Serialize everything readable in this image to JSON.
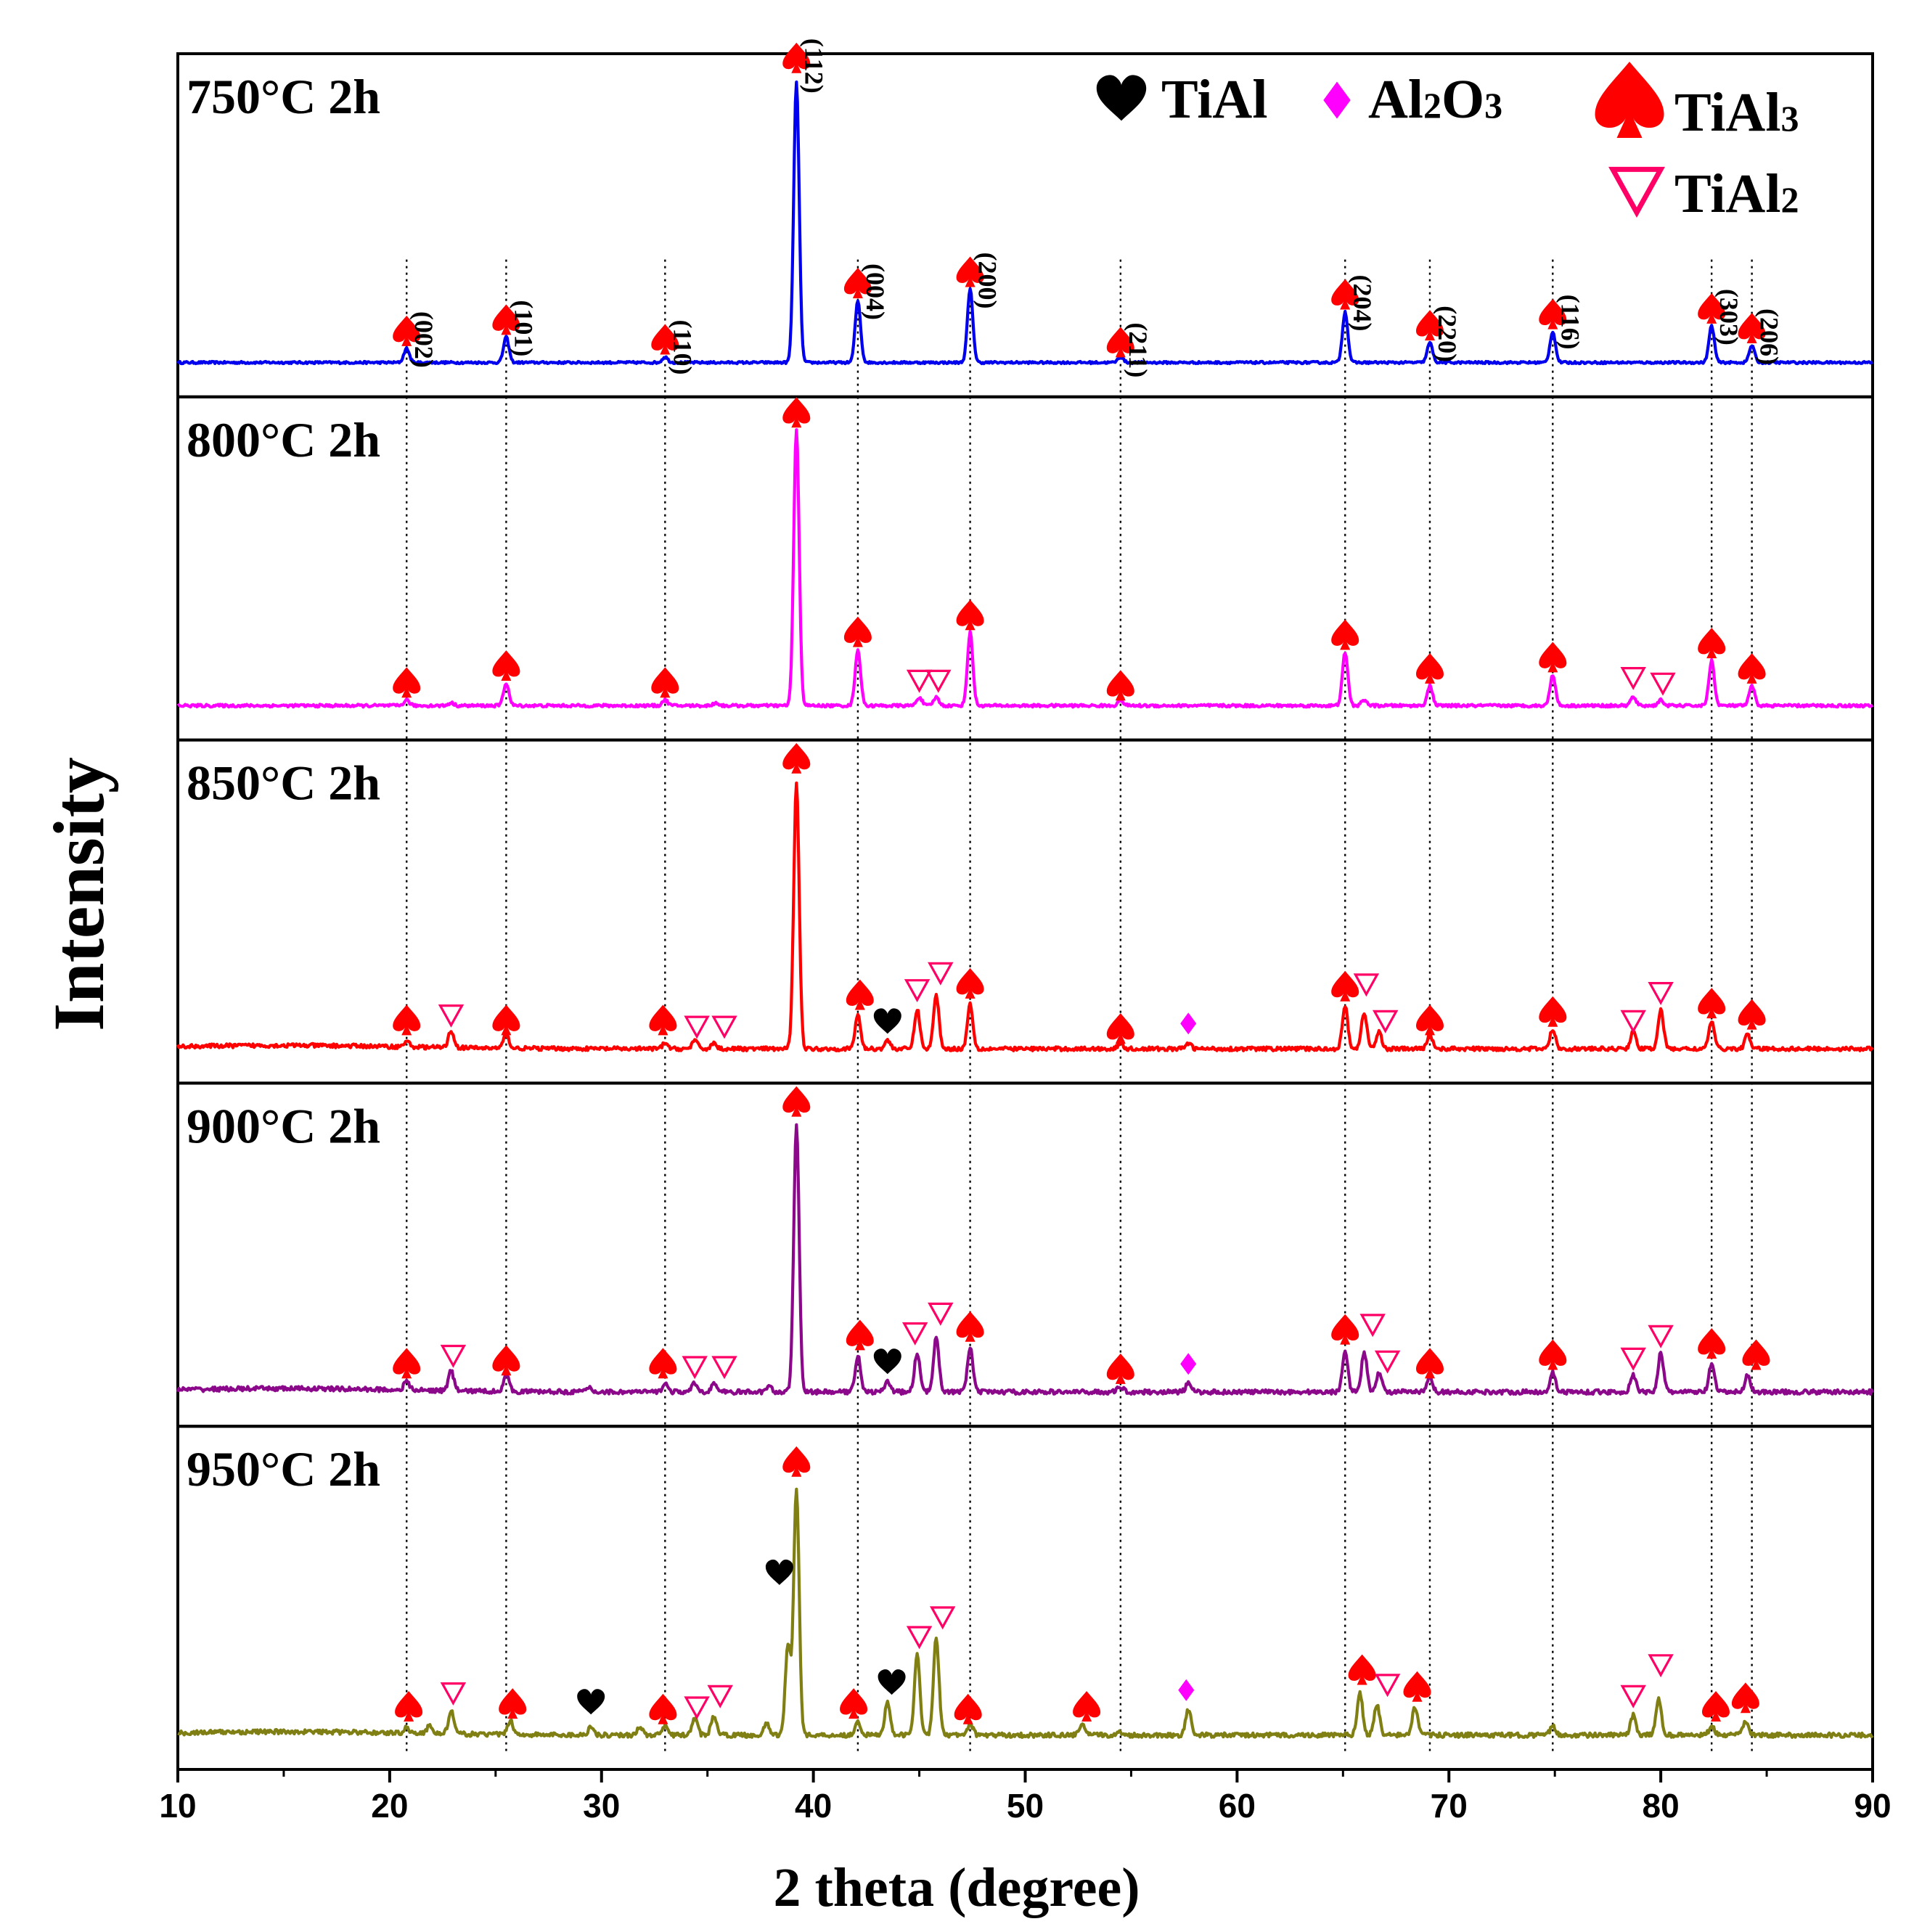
{
  "chart_data": {
    "type": "line",
    "title": "",
    "xlabel": "2 theta (degree)",
    "ylabel": "Intensity",
    "xlim": [
      10,
      90
    ],
    "xticks": [
      10,
      20,
      30,
      40,
      50,
      60,
      70,
      80,
      90
    ],
    "xtick_labels": [
      "10",
      "20",
      "30",
      "40",
      "50",
      "60",
      "70",
      "80",
      "90"
    ],
    "grid": false,
    "legend": {
      "position": "top-right",
      "entries": [
        {
          "marker": "heart",
          "color": "#000000",
          "name": "TiAl",
          "base": "TiAl",
          "sub": ""
        },
        {
          "marker": "diamond",
          "color": "#ff00ff",
          "name": "Al2O3",
          "base": "Al",
          "sub": "2",
          "base2": "O",
          "sub2": "3"
        },
        {
          "marker": "spade",
          "color": "#ff0000",
          "name": "TiAl3",
          "base": "TiAl",
          "sub": "3"
        },
        {
          "marker": "triangle-down-open",
          "color": "#ff0066",
          "name": "TiAl2",
          "base": "TiAl",
          "sub": "2"
        }
      ]
    },
    "reference_lines": [
      20.8,
      25.5,
      33.0,
      42.1,
      47.4,
      54.5,
      65.1,
      69.1,
      74.9,
      82.4,
      84.3
    ],
    "hkl_labels": [
      {
        "x": 20.8,
        "label": "(002)"
      },
      {
        "x": 25.5,
        "label": "(101)"
      },
      {
        "x": 33.0,
        "label": "(110)"
      },
      {
        "x": 39.2,
        "label": "(112)"
      },
      {
        "x": 42.1,
        "label": "(004)"
      },
      {
        "x": 47.4,
        "label": "(200)"
      },
      {
        "x": 54.5,
        "label": "(211)"
      },
      {
        "x": 65.1,
        "label": "(204)"
      },
      {
        "x": 69.1,
        "label": "(220)"
      },
      {
        "x": 74.9,
        "label": "(116)"
      },
      {
        "x": 82.4,
        "label": "(303)"
      },
      {
        "x": 84.3,
        "label": "(206)"
      }
    ],
    "series": [
      {
        "name": "750°C 2h",
        "color": "#0000ee",
        "noise": 0.004,
        "peaks": [
          [
            20.8,
            0.05
          ],
          [
            25.5,
            0.09
          ],
          [
            33.0,
            0.02
          ],
          [
            39.2,
            1.0
          ],
          [
            42.1,
            0.22
          ],
          [
            47.4,
            0.26
          ],
          [
            54.5,
            0.02
          ],
          [
            65.1,
            0.18
          ],
          [
            69.1,
            0.07
          ],
          [
            74.9,
            0.11
          ],
          [
            82.4,
            0.13
          ],
          [
            84.3,
            0.06
          ]
        ],
        "markers": [
          {
            "type": "spade",
            "x": 20.8,
            "y": 0.11
          },
          {
            "type": "spade",
            "x": 25.5,
            "y": 0.15
          },
          {
            "type": "spade",
            "x": 33.0,
            "y": 0.08
          },
          {
            "type": "spade",
            "x": 39.2,
            "y": 1.08
          },
          {
            "type": "spade",
            "x": 42.1,
            "y": 0.28
          },
          {
            "type": "spade",
            "x": 47.4,
            "y": 0.32
          },
          {
            "type": "spade",
            "x": 54.5,
            "y": 0.07
          },
          {
            "type": "spade",
            "x": 65.1,
            "y": 0.24
          },
          {
            "type": "spade",
            "x": 69.1,
            "y": 0.13
          },
          {
            "type": "spade",
            "x": 74.9,
            "y": 0.17
          },
          {
            "type": "spade",
            "x": 82.4,
            "y": 0.19
          },
          {
            "type": "spade",
            "x": 84.3,
            "y": 0.12
          }
        ]
      },
      {
        "name": "800°C 2h",
        "color": "#ff00ff",
        "noise": 0.005,
        "peaks": [
          [
            20.8,
            0.02
          ],
          [
            22.9,
            0.01
          ],
          [
            25.5,
            0.08
          ],
          [
            33.0,
            0.02
          ],
          [
            35.4,
            0.01
          ],
          [
            39.2,
            0.98
          ],
          [
            42.1,
            0.2
          ],
          [
            45.0,
            0.03
          ],
          [
            45.8,
            0.03
          ],
          [
            47.4,
            0.26
          ],
          [
            54.5,
            0.02
          ],
          [
            65.1,
            0.19
          ],
          [
            66.0,
            0.02
          ],
          [
            69.1,
            0.07
          ],
          [
            74.9,
            0.11
          ],
          [
            78.7,
            0.03
          ],
          [
            80.0,
            0.02
          ],
          [
            82.4,
            0.16
          ],
          [
            84.3,
            0.07
          ]
        ],
        "markers": [
          {
            "type": "spade",
            "x": 20.8,
            "y": 0.08
          },
          {
            "type": "spade",
            "x": 25.5,
            "y": 0.14
          },
          {
            "type": "spade",
            "x": 33.0,
            "y": 0.08
          },
          {
            "type": "spade",
            "x": 39.2,
            "y": 1.04
          },
          {
            "type": "spade",
            "x": 42.1,
            "y": 0.26
          },
          {
            "type": "tri",
            "x": 45.0,
            "y": 0.09
          },
          {
            "type": "tri",
            "x": 45.9,
            "y": 0.09
          },
          {
            "type": "spade",
            "x": 47.4,
            "y": 0.32
          },
          {
            "type": "spade",
            "x": 54.5,
            "y": 0.07
          },
          {
            "type": "spade",
            "x": 65.1,
            "y": 0.25
          },
          {
            "type": "spade",
            "x": 69.1,
            "y": 0.13
          },
          {
            "type": "spade",
            "x": 74.9,
            "y": 0.17
          },
          {
            "type": "tri",
            "x": 78.7,
            "y": 0.1
          },
          {
            "type": "tri",
            "x": 80.1,
            "y": 0.08
          },
          {
            "type": "spade",
            "x": 82.4,
            "y": 0.22
          },
          {
            "type": "spade",
            "x": 84.3,
            "y": 0.13
          }
        ]
      },
      {
        "name": "850°C 2h",
        "color": "#ff0000",
        "noise": 0.007,
        "peaks": [
          [
            20.8,
            0.02
          ],
          [
            22.9,
            0.06
          ],
          [
            25.5,
            0.05
          ],
          [
            33.0,
            0.02
          ],
          [
            34.4,
            0.03
          ],
          [
            35.3,
            0.02
          ],
          [
            39.2,
            0.95
          ],
          [
            42.1,
            0.12
          ],
          [
            43.5,
            0.03
          ],
          [
            44.9,
            0.14
          ],
          [
            45.8,
            0.19
          ],
          [
            47.4,
            0.16
          ],
          [
            54.5,
            0.02
          ],
          [
            57.7,
            0.02
          ],
          [
            65.1,
            0.15
          ],
          [
            66.0,
            0.13
          ],
          [
            66.7,
            0.06
          ],
          [
            69.1,
            0.05
          ],
          [
            74.9,
            0.07
          ],
          [
            78.7,
            0.06
          ],
          [
            80.0,
            0.14
          ],
          [
            82.4,
            0.1
          ],
          [
            84.1,
            0.05
          ]
        ],
        "markers": [
          {
            "type": "spade",
            "x": 20.8,
            "y": 0.1
          },
          {
            "type": "tri",
            "x": 22.9,
            "y": 0.12
          },
          {
            "type": "spade",
            "x": 25.5,
            "y": 0.1
          },
          {
            "type": "spade",
            "x": 32.9,
            "y": 0.1
          },
          {
            "type": "tri",
            "x": 34.5,
            "y": 0.08
          },
          {
            "type": "tri",
            "x": 35.8,
            "y": 0.08
          },
          {
            "type": "spade",
            "x": 39.2,
            "y": 1.03
          },
          {
            "type": "spade",
            "x": 42.2,
            "y": 0.19
          },
          {
            "type": "heart",
            "x": 43.5,
            "y": 0.1
          },
          {
            "type": "tri",
            "x": 44.9,
            "y": 0.21
          },
          {
            "type": "tri",
            "x": 46.0,
            "y": 0.27
          },
          {
            "type": "spade",
            "x": 47.4,
            "y": 0.23
          },
          {
            "type": "spade",
            "x": 54.5,
            "y": 0.07
          },
          {
            "type": "diamond",
            "x": 57.7,
            "y": 0.09
          },
          {
            "type": "spade",
            "x": 65.1,
            "y": 0.22
          },
          {
            "type": "tri",
            "x": 66.1,
            "y": 0.23
          },
          {
            "type": "tri",
            "x": 67.0,
            "y": 0.1
          },
          {
            "type": "spade",
            "x": 69.1,
            "y": 0.1
          },
          {
            "type": "spade",
            "x": 74.9,
            "y": 0.13
          },
          {
            "type": "tri",
            "x": 78.7,
            "y": 0.1
          },
          {
            "type": "tri",
            "x": 80.0,
            "y": 0.2
          },
          {
            "type": "spade",
            "x": 82.4,
            "y": 0.16
          },
          {
            "type": "spade",
            "x": 84.3,
            "y": 0.12
          }
        ]
      },
      {
        "name": "900°C 2h",
        "color": "#8b088b",
        "noise": 0.008,
        "peaks": [
          [
            20.8,
            0.03
          ],
          [
            22.9,
            0.07
          ],
          [
            25.5,
            0.06
          ],
          [
            29.4,
            0.015
          ],
          [
            33.0,
            0.03
          ],
          [
            34.4,
            0.03
          ],
          [
            35.3,
            0.03
          ],
          [
            37.9,
            0.02
          ],
          [
            39.2,
            0.95
          ],
          [
            42.1,
            0.13
          ],
          [
            43.5,
            0.04
          ],
          [
            44.9,
            0.14
          ],
          [
            45.8,
            0.2
          ],
          [
            47.4,
            0.16
          ],
          [
            54.5,
            0.02
          ],
          [
            57.7,
            0.03
          ],
          [
            65.1,
            0.15
          ],
          [
            66.0,
            0.14
          ],
          [
            66.7,
            0.07
          ],
          [
            69.1,
            0.05
          ],
          [
            74.9,
            0.07
          ],
          [
            78.7,
            0.06
          ],
          [
            80.0,
            0.14
          ],
          [
            82.4,
            0.1
          ],
          [
            84.1,
            0.06
          ]
        ],
        "markers": [
          {
            "type": "spade",
            "x": 20.8,
            "y": 0.1
          },
          {
            "type": "tri",
            "x": 23.0,
            "y": 0.13
          },
          {
            "type": "spade",
            "x": 25.5,
            "y": 0.11
          },
          {
            "type": "spade",
            "x": 32.9,
            "y": 0.1
          },
          {
            "type": "tri",
            "x": 34.4,
            "y": 0.09
          },
          {
            "type": "tri",
            "x": 35.8,
            "y": 0.09
          },
          {
            "type": "spade",
            "x": 39.2,
            "y": 1.03
          },
          {
            "type": "spade",
            "x": 42.2,
            "y": 0.2
          },
          {
            "type": "heart",
            "x": 43.5,
            "y": 0.11
          },
          {
            "type": "tri",
            "x": 44.8,
            "y": 0.21
          },
          {
            "type": "tri",
            "x": 46.0,
            "y": 0.28
          },
          {
            "type": "spade",
            "x": 47.4,
            "y": 0.23
          },
          {
            "type": "spade",
            "x": 54.5,
            "y": 0.08
          },
          {
            "type": "diamond",
            "x": 57.7,
            "y": 0.1
          },
          {
            "type": "spade",
            "x": 65.1,
            "y": 0.22
          },
          {
            "type": "tri",
            "x": 66.4,
            "y": 0.24
          },
          {
            "type": "tri",
            "x": 67.1,
            "y": 0.11
          },
          {
            "type": "spade",
            "x": 69.1,
            "y": 0.1
          },
          {
            "type": "spade",
            "x": 74.9,
            "y": 0.13
          },
          {
            "type": "tri",
            "x": 78.7,
            "y": 0.12
          },
          {
            "type": "tri",
            "x": 80.0,
            "y": 0.2
          },
          {
            "type": "spade",
            "x": 82.4,
            "y": 0.17
          },
          {
            "type": "spade",
            "x": 84.5,
            "y": 0.13
          }
        ]
      },
      {
        "name": "950°C 2h",
        "color": "#7f7f14",
        "noise": 0.008,
        "peaks": [
          [
            20.8,
            0.02
          ],
          [
            21.9,
            0.03
          ],
          [
            22.9,
            0.08
          ],
          [
            25.7,
            0.05
          ],
          [
            29.5,
            0.03
          ],
          [
            31.8,
            0.03
          ],
          [
            33.0,
            0.03
          ],
          [
            34.4,
            0.06
          ],
          [
            35.3,
            0.07
          ],
          [
            37.8,
            0.04
          ],
          [
            38.8,
            0.32
          ],
          [
            39.2,
            0.88
          ],
          [
            42.1,
            0.05
          ],
          [
            43.5,
            0.12
          ],
          [
            44.9,
            0.29
          ],
          [
            45.8,
            0.35
          ],
          [
            47.4,
            0.04
          ],
          [
            52.7,
            0.04
          ],
          [
            54.5,
            0.01
          ],
          [
            57.7,
            0.09
          ],
          [
            65.8,
            0.15
          ],
          [
            66.6,
            0.11
          ],
          [
            68.4,
            0.1
          ],
          [
            74.9,
            0.03
          ],
          [
            78.7,
            0.07
          ],
          [
            79.9,
            0.13
          ],
          [
            82.4,
            0.03
          ],
          [
            84.0,
            0.05
          ]
        ],
        "markers": [
          {
            "type": "spade",
            "x": 20.9,
            "y": 0.1
          },
          {
            "type": "tri",
            "x": 23.0,
            "y": 0.15
          },
          {
            "type": "spade",
            "x": 25.8,
            "y": 0.11
          },
          {
            "type": "heart",
            "x": 29.5,
            "y": 0.12
          },
          {
            "type": "spade",
            "x": 32.9,
            "y": 0.09
          },
          {
            "type": "tri",
            "x": 34.5,
            "y": 0.1
          },
          {
            "type": "tri",
            "x": 35.6,
            "y": 0.14
          },
          {
            "type": "heart",
            "x": 38.4,
            "y": 0.58
          },
          {
            "type": "spade",
            "x": 39.2,
            "y": 0.97
          },
          {
            "type": "spade",
            "x": 41.9,
            "y": 0.11
          },
          {
            "type": "heart",
            "x": 43.7,
            "y": 0.19
          },
          {
            "type": "tri",
            "x": 45.0,
            "y": 0.35
          },
          {
            "type": "tri",
            "x": 46.1,
            "y": 0.42
          },
          {
            "type": "spade",
            "x": 47.3,
            "y": 0.09
          },
          {
            "type": "spade",
            "x": 52.9,
            "y": 0.1
          },
          {
            "type": "diamond",
            "x": 57.6,
            "y": 0.16
          },
          {
            "type": "spade",
            "x": 65.9,
            "y": 0.23
          },
          {
            "type": "tri",
            "x": 67.1,
            "y": 0.18
          },
          {
            "type": "spade",
            "x": 68.5,
            "y": 0.17
          },
          {
            "type": "tri",
            "x": 78.7,
            "y": 0.14
          },
          {
            "type": "tri",
            "x": 80.0,
            "y": 0.25
          },
          {
            "type": "spade",
            "x": 82.6,
            "y": 0.1
          },
          {
            "type": "spade",
            "x": 84.0,
            "y": 0.13
          }
        ]
      }
    ]
  }
}
